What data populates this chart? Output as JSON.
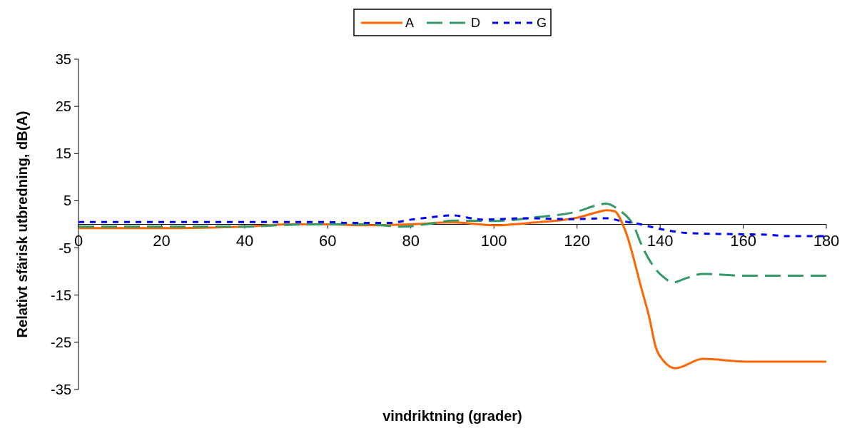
{
  "chart_data": {
    "type": "line",
    "xlabel": "vindriktning (grader)",
    "ylabel": "Relativt sfärisk utbredning, dB(A)",
    "xlim": [
      0,
      180
    ],
    "xticks": [
      0,
      20,
      40,
      60,
      80,
      100,
      120,
      140,
      160,
      180
    ],
    "ylim": [
      -35,
      35
    ],
    "yticks": [
      -35,
      -25,
      -15,
      -5,
      5,
      15,
      25,
      35
    ],
    "legend": "top",
    "grid": false,
    "series": [
      {
        "name": "A",
        "color": "#ff6600",
        "line_style": "solid",
        "x": [
          0,
          20,
          40,
          50,
          60,
          70,
          80,
          90,
          100,
          110,
          120,
          125,
          127,
          129,
          131.6,
          135.6,
          137.3,
          139,
          140.7,
          143.7,
          150.3,
          160.5,
          180
        ],
        "values": [
          -0.8,
          -0.8,
          -0.5,
          0,
          0,
          -0.2,
          0,
          0.4,
          -0.2,
          0.4,
          1.4,
          2.6,
          3,
          2.8,
          -1.3,
          -13.9,
          -19.4,
          -26.2,
          -28.8,
          -30.5,
          -28.5,
          -29.1,
          -29.1
        ]
      },
      {
        "name": "D",
        "color": "#339966",
        "line_style": "dashed",
        "x": [
          0,
          20,
          40,
          50,
          60,
          70,
          78,
          85,
          90,
          100,
          110,
          120,
          125,
          127,
          130,
          133.9,
          135.3,
          138.4,
          140.7,
          143.2,
          146.3,
          150.3,
          160.5,
          180
        ],
        "values": [
          -0.5,
          -0.5,
          -0.5,
          -0.1,
          0,
          0,
          -0.5,
          0.2,
          0.8,
          0.7,
          1.5,
          2.7,
          4.1,
          4.4,
          3.1,
          -0.8,
          -3.9,
          -8.9,
          -11.1,
          -12.3,
          -11.4,
          -10.5,
          -10.9,
          -10.9
        ]
      },
      {
        "name": "G",
        "color": "#0000ff",
        "line_style": "dotted",
        "x": [
          0,
          20,
          40,
          60,
          65,
          75,
          80,
          85,
          89.8,
          97.4,
          107.4,
          119,
          127.2,
          130.6,
          134.2,
          140.7,
          147.6,
          160,
          166,
          170.5,
          180
        ],
        "values": [
          0.5,
          0.5,
          0.5,
          0.5,
          0.3,
          0.3,
          1,
          1.5,
          1.9,
          1,
          1.3,
          1.1,
          1.3,
          0.7,
          0.2,
          -1.1,
          -1.9,
          -2.1,
          -2.2,
          -2.5,
          -2.5
        ]
      }
    ]
  }
}
